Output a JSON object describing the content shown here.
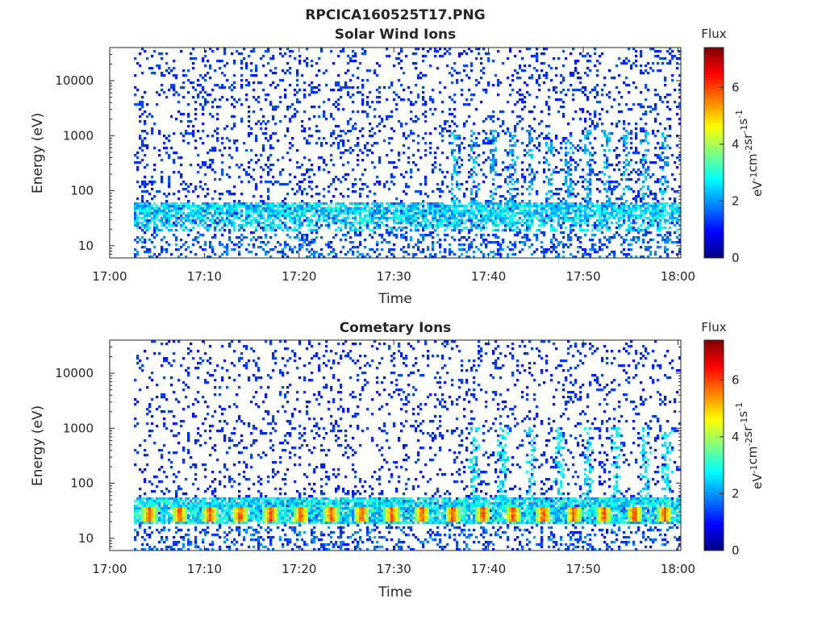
{
  "figure": {
    "main_title": "RPCICA160525T17.PNG"
  },
  "chart_data": [
    {
      "type": "heatmap",
      "title": "Solar Wind Ions",
      "xlabel": "Time",
      "ylabel": "Energy (eV)",
      "x_ticks": [
        "17:00",
        "17:10",
        "17:20",
        "17:30",
        "17:40",
        "17:50",
        "18:00"
      ],
      "x_range_minutes": [
        0,
        60.3
      ],
      "x_data_start_minute": 2.6,
      "y_scale": "log",
      "y_ticks": [
        10,
        100,
        1000,
        10000
      ],
      "y_tick_labels": [
        "10",
        "100",
        "1000",
        "10000"
      ],
      "ylim": [
        6,
        40000
      ],
      "colorbar": {
        "title": "Flux",
        "label_parts": [
          "eV",
          "-1",
          "cm",
          "-2",
          "sr",
          "-1",
          "s",
          "-1"
        ],
        "range": [
          0,
          7.4
        ],
        "ticks": [
          0,
          2,
          4,
          6
        ],
        "tick_labels": [
          "0",
          "2",
          "4",
          "6"
        ],
        "colormap": "jet"
      },
      "features": {
        "background_noise_flux": 1.0,
        "low_energy_band_eV": [
          18,
          60
        ],
        "low_energy_band_flux": 1.8,
        "vertical_streak_minutes": [
          36.5,
          38.5,
          40.5,
          42.5,
          44.5,
          46.5,
          48.5,
          50.5,
          52.5,
          54.5,
          56.5,
          58.5
        ],
        "streak_flux": 1.8
      }
    },
    {
      "type": "heatmap",
      "title": "Cometary Ions",
      "xlabel": "Time",
      "ylabel": "Energy (eV)",
      "x_ticks": [
        "17:00",
        "17:10",
        "17:20",
        "17:30",
        "17:40",
        "17:50",
        "18:00"
      ],
      "x_range_minutes": [
        0,
        60.3
      ],
      "x_data_start_minute": 2.6,
      "y_scale": "log",
      "y_ticks": [
        10,
        100,
        1000,
        10000
      ],
      "y_tick_labels": [
        "10",
        "100",
        "1000",
        "10000"
      ],
      "ylim": [
        6,
        40000
      ],
      "colorbar": {
        "title": "Flux",
        "label_parts": [
          "eV",
          "-1",
          "cm",
          "-2",
          "sr",
          "-1",
          "s",
          "-1"
        ],
        "range": [
          0,
          7.4
        ],
        "ticks": [
          0,
          2,
          4,
          6
        ],
        "tick_labels": [
          "0",
          "2",
          "4",
          "6"
        ],
        "colormap": "jet"
      },
      "features": {
        "background_noise_flux": 1.0,
        "band_eV": [
          18,
          55
        ],
        "band_edge_flux": 3.0,
        "pulse_period_minutes": 3.2,
        "pulse_peak_flux": 5.6,
        "pulse_core_eV": [
          20,
          38
        ],
        "vertical_streak_minutes": [
          38.5,
          41.5,
          44.5,
          47.5,
          50.5,
          53.5,
          56.5,
          58.8
        ],
        "streak_flux": 2.2
      }
    }
  ]
}
